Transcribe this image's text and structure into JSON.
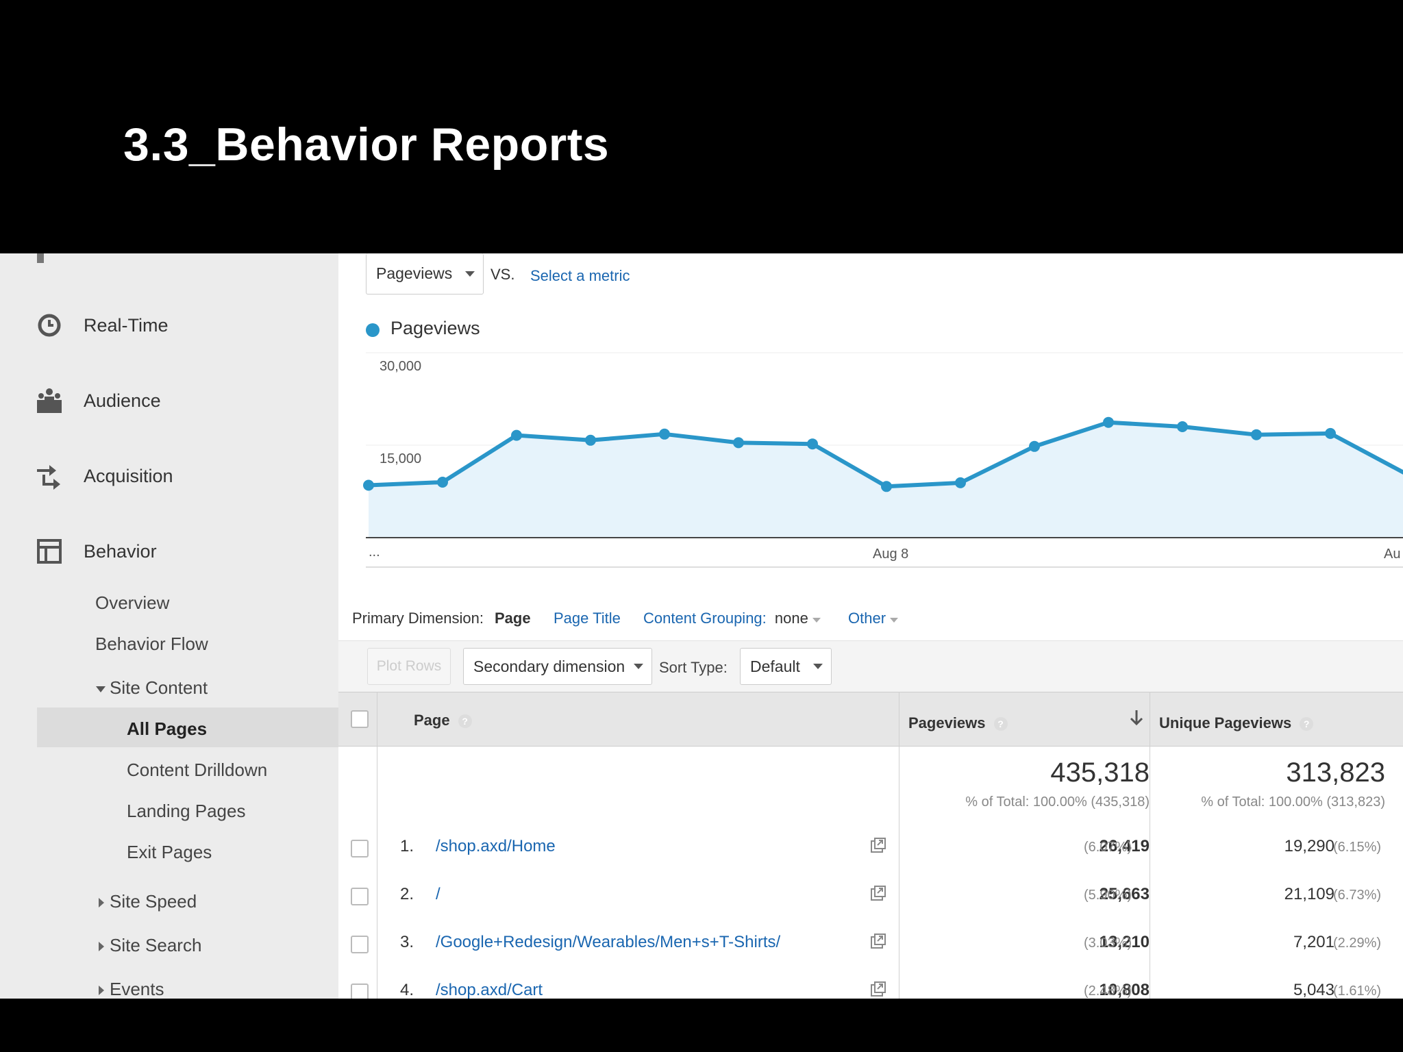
{
  "slide": {
    "title": "3.3_Behavior Reports"
  },
  "sidebar": {
    "main_items": [
      {
        "label": "Real-Time",
        "icon": "clock-icon"
      },
      {
        "label": "Audience",
        "icon": "people-icon"
      },
      {
        "label": "Acquisition",
        "icon": "arrows-icon"
      },
      {
        "label": "Behavior",
        "icon": "layout-icon"
      }
    ],
    "behavior_items": [
      {
        "label": "Overview"
      },
      {
        "label": "Behavior Flow"
      },
      {
        "label": "Site Content"
      },
      {
        "label": "All Pages"
      },
      {
        "label": "Content Drilldown"
      },
      {
        "label": "Landing Pages"
      },
      {
        "label": "Exit Pages"
      },
      {
        "label": "Site Speed"
      },
      {
        "label": "Site Search"
      },
      {
        "label": "Events"
      }
    ]
  },
  "metric_bar": {
    "metric": "Pageviews",
    "vs": "VS.",
    "select": "Select a metric"
  },
  "chart": {
    "legend": "Pageviews",
    "color": "#2a96c9",
    "y_ticks": [
      "30,000",
      "15,000"
    ],
    "x_labels": [
      "...",
      "Aug 8",
      "Au"
    ]
  },
  "chart_data": {
    "type": "line",
    "series": [
      {
        "name": "Pageviews",
        "values": [
          8500,
          9000,
          16600,
          15800,
          16800,
          15400,
          15200,
          8300,
          8900,
          14800,
          18700,
          18000,
          16700,
          16900,
          10500
        ]
      }
    ],
    "ylim": [
      0,
      30000
    ],
    "x_labels": [
      "...",
      "Aug 8",
      "Au"
    ]
  },
  "dimension": {
    "label": "Primary Dimension:",
    "page": "Page",
    "page_title": "Page Title",
    "grouping_label": "Content Grouping:",
    "grouping_value": "none",
    "other": "Other"
  },
  "toolbar": {
    "plot_rows": "Plot Rows",
    "secondary": "Secondary dimension",
    "sort_label": "Sort Type:",
    "sort_value": "Default"
  },
  "table": {
    "headers": {
      "page": "Page",
      "pageviews": "Pageviews",
      "unique": "Unique Pageviews",
      "help": "?"
    },
    "totals": {
      "pageviews": "435,318",
      "pageviews_sub": "% of Total: 100.00% (435,318)",
      "unique": "313,823",
      "unique_sub": "% of Total: 100.00% (313,823)"
    },
    "rows": [
      {
        "num": "1.",
        "page": "/shop.axd/Home",
        "pv": "26,419",
        "pv_pct": "(6.07%)",
        "upv": "19,290",
        "upv_pct": "(6.15%)"
      },
      {
        "num": "2.",
        "page": "/",
        "pv": "25,663",
        "pv_pct": "(5.90%)",
        "upv": "21,109",
        "upv_pct": "(6.73%)"
      },
      {
        "num": "3.",
        "page": "/Google+Redesign/Wearables/Men+s+T-Shirts/",
        "pv": "13,210",
        "pv_pct": "(3.03%)",
        "upv": "7,201",
        "upv_pct": "(2.29%)"
      },
      {
        "num": "4.",
        "page": "/shop.axd/Cart",
        "pv": "10,808",
        "pv_pct": "(2.48%)",
        "upv": "5,043",
        "upv_pct": "(1.61%)"
      }
    ]
  }
}
